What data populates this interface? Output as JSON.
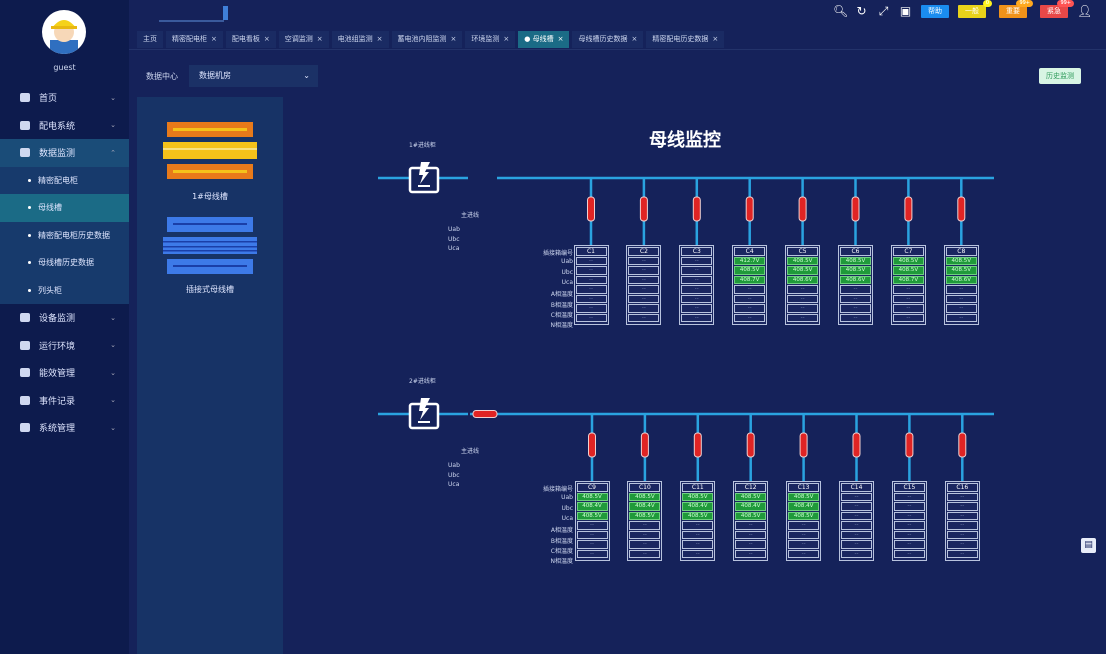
{
  "user": {
    "name": "guest"
  },
  "sidebar": {
    "items": [
      {
        "label": "首页",
        "icon": "shield-icon"
      },
      {
        "label": "配电系统",
        "icon": "globe-icon"
      },
      {
        "label": "数据监测",
        "icon": "monitor-icon",
        "open": true,
        "children": [
          {
            "label": "精密配电柜"
          },
          {
            "label": "母线槽",
            "active": true
          },
          {
            "label": "精密配电柜历史数据"
          },
          {
            "label": "母线槽历史数据"
          },
          {
            "label": "列头柜"
          }
        ]
      },
      {
        "label": "设备监测",
        "icon": "chart-icon"
      },
      {
        "label": "运行环境",
        "icon": "camera-icon"
      },
      {
        "label": "能效管理",
        "icon": "folder-icon"
      },
      {
        "label": "事件记录",
        "icon": "file-icon"
      },
      {
        "label": "系统管理",
        "icon": "settings-icon"
      }
    ]
  },
  "topbar": {
    "help": "帮助",
    "alarms": [
      {
        "label": "一般",
        "count": "0",
        "color": "#e8d21a"
      },
      {
        "label": "重要",
        "count": "99+",
        "color": "#f0921a"
      },
      {
        "label": "紧急",
        "count": "99+",
        "color": "#e84848"
      }
    ]
  },
  "tabs": [
    {
      "label": "主页"
    },
    {
      "label": "精密配电柜"
    },
    {
      "label": "配电看板"
    },
    {
      "label": "空调监测"
    },
    {
      "label": "电池组监测"
    },
    {
      "label": "蓄电池内阻监测"
    },
    {
      "label": "环境监测"
    },
    {
      "label": "母线槽",
      "active": true
    },
    {
      "label": "母线槽历史数据"
    },
    {
      "label": "精密配电历史数据"
    }
  ],
  "filter": {
    "label": "数据中心",
    "value": "数据机房"
  },
  "history_button": "历史监测",
  "panel": {
    "items": [
      {
        "label": "1#母线槽",
        "color": "#f08a1a"
      },
      {
        "label": "插接式母线槽",
        "color": "#3d7ae8"
      }
    ]
  },
  "title": "母线监控",
  "row_labels": [
    "插接箱编号",
    "Uab",
    "Ubc",
    "Uca",
    "A相温度",
    "B相温度",
    "C相温度",
    "N相温度"
  ],
  "buses": [
    {
      "incomer": "1#进线柜",
      "main": "主进线",
      "main_labels": [
        "Uab",
        "Ubc",
        "Uca"
      ],
      "boxes": [
        {
          "id": "C1",
          "values": [
            "--",
            "--",
            "--",
            "--",
            "--",
            "--",
            "--"
          ]
        },
        {
          "id": "C2",
          "values": [
            "--",
            "--",
            "--",
            "--",
            "--",
            "--",
            "--"
          ]
        },
        {
          "id": "C3",
          "values": [
            "--",
            "--",
            "--",
            "--",
            "--",
            "--",
            "--"
          ]
        },
        {
          "id": "C4",
          "values": [
            "412.7V",
            "408.5V",
            "408.7V",
            "--",
            "--",
            "--",
            "--"
          ]
        },
        {
          "id": "C5",
          "values": [
            "408.5V",
            "408.5V",
            "408.6V",
            "--",
            "--",
            "--",
            "--"
          ]
        },
        {
          "id": "C6",
          "values": [
            "408.5V",
            "408.5V",
            "408.6V",
            "--",
            "--",
            "--",
            "--"
          ]
        },
        {
          "id": "C7",
          "values": [
            "408.5V",
            "408.5V",
            "408.7V",
            "--",
            "--",
            "--",
            "--"
          ]
        },
        {
          "id": "C8",
          "values": [
            "408.5V",
            "408.5V",
            "408.6V",
            "--",
            "--",
            "--",
            "--"
          ]
        }
      ]
    },
    {
      "incomer": "2#进线柜",
      "main": "主进线",
      "main_labels": [
        "Uab",
        "Ubc",
        "Uca"
      ],
      "boxes": [
        {
          "id": "C9",
          "values": [
            "408.5V",
            "408.4V",
            "408.5V",
            "--",
            "--",
            "--",
            "--"
          ]
        },
        {
          "id": "C10",
          "values": [
            "408.5V",
            "408.4V",
            "408.5V",
            "--",
            "--",
            "--",
            "--"
          ]
        },
        {
          "id": "C11",
          "values": [
            "408.5V",
            "408.4V",
            "408.5V",
            "--",
            "--",
            "--",
            "--"
          ]
        },
        {
          "id": "C12",
          "values": [
            "408.5V",
            "408.4V",
            "408.5V",
            "--",
            "--",
            "--",
            "--"
          ]
        },
        {
          "id": "C13",
          "values": [
            "408.5V",
            "408.4V",
            "408.5V",
            "--",
            "--",
            "--",
            "--"
          ]
        },
        {
          "id": "C14",
          "values": [
            "--",
            "--",
            "--",
            "--",
            "--",
            "--",
            "--"
          ]
        },
        {
          "id": "C15",
          "values": [
            "--",
            "--",
            "--",
            "--",
            "--",
            "--",
            "--"
          ]
        },
        {
          "id": "C16",
          "values": [
            "--",
            "--",
            "--",
            "--",
            "--",
            "--",
            "--"
          ]
        }
      ]
    }
  ],
  "colors": {
    "bus_line": "#2aa3e0",
    "fuse": "#e02424",
    "value_on": "#1f9a3a",
    "accent": "#1b6b86"
  }
}
